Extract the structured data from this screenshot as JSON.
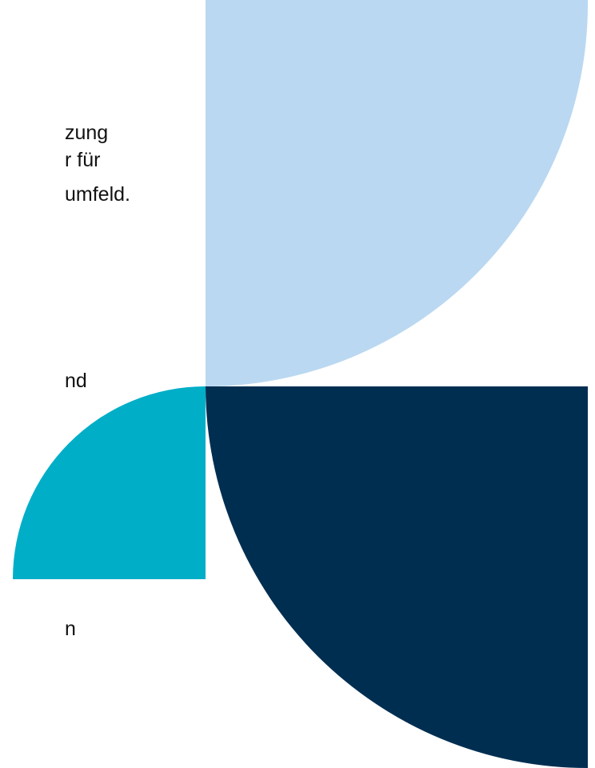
{
  "text_fragments": [
    "zung",
    "r für",
    "umfeld.",
    "nd",
    "n"
  ],
  "colors": {
    "light_blue": "#bad8f1",
    "teal": "#00aec7",
    "navy": "#002e51",
    "background": "#ffffff",
    "text": "#111111"
  }
}
